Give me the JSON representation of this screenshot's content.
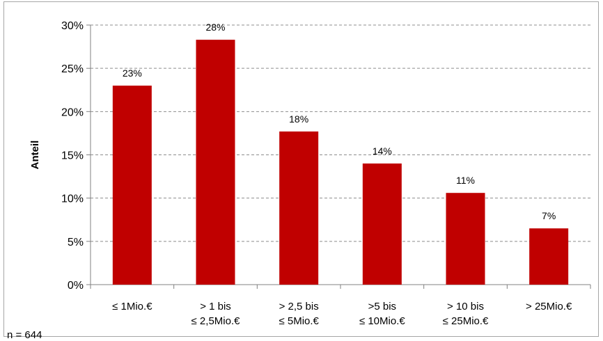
{
  "chart_data": {
    "type": "bar",
    "ylabel": "Anteil",
    "xlabel": "",
    "categories": [
      [
        "≤ 1Mio.€"
      ],
      [
        "> 1 bis",
        "≤ 2,5Mio.€"
      ],
      [
        "> 2,5 bis",
        "≤ 5Mio.€"
      ],
      [
        ">5 bis",
        "≤ 10Mio.€"
      ],
      [
        "> 10 bis",
        "≤ 25Mio.€"
      ],
      [
        "> 25Mio.€"
      ]
    ],
    "values": [
      23,
      28.3,
      17.7,
      14,
      10.6,
      6.5
    ],
    "data_labels": [
      "23%",
      "28%",
      "18%",
      "14%",
      "11%",
      "7%"
    ],
    "yticks": [
      0,
      5,
      10,
      15,
      20,
      25,
      30
    ],
    "ytick_labels": [
      "0%",
      "5%",
      "10%",
      "15%",
      "20%",
      "25%",
      "30%"
    ],
    "ylim": [
      0,
      30
    ],
    "grid": "horizontal dashed",
    "bar_color": "#c00000",
    "legend": "none"
  },
  "footnote": "n = 644"
}
